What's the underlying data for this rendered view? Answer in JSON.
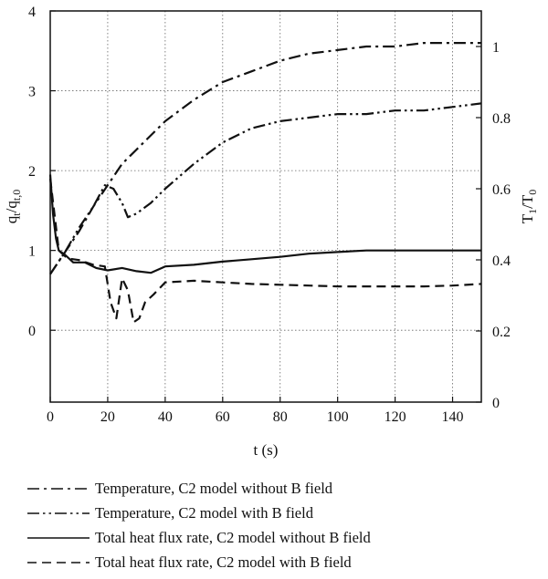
{
  "chart_data": {
    "type": "line",
    "xlabel": "t (s)",
    "ylabel_left": "q_t/q_t,0",
    "ylabel_right": "T_1/T_0",
    "xlim": [
      0,
      150
    ],
    "ylim_left": [
      -0.9,
      4
    ],
    "ylim_right": [
      0,
      1.1
    ],
    "x_ticks": [
      "0",
      "20",
      "40",
      "60",
      "80",
      "100",
      "120",
      "140"
    ],
    "y_left_ticks": [
      "0",
      "1",
      "2",
      "3",
      "4"
    ],
    "y_right_ticks": [
      "0",
      "0.2",
      "0.4",
      "0.6",
      "0.8",
      "1"
    ],
    "grid": true,
    "legend_position": "below",
    "series": [
      {
        "name": "Temperature, C2 model without B field",
        "axis": "right",
        "style": "dashdot",
        "x": [
          0,
          5,
          10,
          15,
          20,
          25,
          30,
          35,
          40,
          50,
          60,
          70,
          80,
          90,
          100,
          110,
          120,
          130,
          140,
          150
        ],
        "y": [
          0.36,
          0.42,
          0.48,
          0.55,
          0.61,
          0.67,
          0.71,
          0.75,
          0.79,
          0.85,
          0.9,
          0.93,
          0.96,
          0.98,
          0.99,
          1.0,
          1.0,
          1.01,
          1.01,
          1.01
        ]
      },
      {
        "name": "Temperature, C2 model with B field",
        "axis": "right",
        "style": "dashdotdot",
        "x": [
          0,
          5,
          10,
          15,
          19,
          22,
          25,
          27,
          30,
          35,
          40,
          50,
          60,
          70,
          80,
          90,
          100,
          110,
          120,
          130,
          140,
          150
        ],
        "y": [
          0.36,
          0.42,
          0.49,
          0.55,
          0.61,
          0.6,
          0.56,
          0.52,
          0.53,
          0.56,
          0.6,
          0.67,
          0.73,
          0.77,
          0.79,
          0.8,
          0.81,
          0.81,
          0.82,
          0.82,
          0.83,
          0.84
        ]
      },
      {
        "name": "Total heat flux rate, C2 model without B field",
        "axis": "left",
        "style": "solid",
        "x": [
          0,
          1,
          2,
          3,
          5,
          8,
          12,
          16,
          20,
          25,
          30,
          35,
          40,
          50,
          60,
          70,
          80,
          90,
          100,
          110,
          120,
          130,
          140,
          150
        ],
        "y": [
          1.95,
          1.45,
          1.15,
          1.0,
          0.95,
          0.85,
          0.85,
          0.78,
          0.75,
          0.78,
          0.74,
          0.72,
          0.8,
          0.82,
          0.86,
          0.89,
          0.92,
          0.96,
          0.98,
          1.0,
          1.0,
          1.0,
          1.0,
          1.0
        ]
      },
      {
        "name": "Total heat flux rate, C2 model with B field",
        "axis": "left",
        "style": "dashed",
        "x": [
          0,
          3,
          6,
          10,
          15,
          19,
          21,
          23,
          25,
          27,
          29,
          31,
          33,
          36,
          40,
          50,
          60,
          70,
          80,
          90,
          100,
          110,
          120,
          130,
          140,
          150
        ],
        "y": [
          1.9,
          1.0,
          0.9,
          0.88,
          0.82,
          0.8,
          0.35,
          0.15,
          0.65,
          0.5,
          0.1,
          0.15,
          0.35,
          0.45,
          0.6,
          0.62,
          0.6,
          0.58,
          0.57,
          0.56,
          0.55,
          0.55,
          0.55,
          0.55,
          0.56,
          0.58
        ]
      }
    ]
  }
}
